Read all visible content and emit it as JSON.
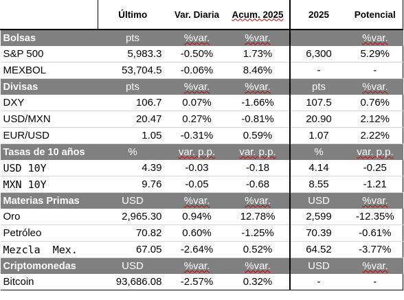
{
  "headers": {
    "blank": "",
    "ultimo": "Último",
    "var_diaria": "Var. Diaria",
    "acum": "Acum. 2025",
    "y2025": "2025",
    "potencial": "Potencial"
  },
  "sections": [
    {
      "title": "Bolsas",
      "units": [
        "pts",
        "%var.",
        "%var.",
        "",
        "%var."
      ],
      "rows": [
        {
          "name": "S&P 500",
          "last": "5,983.3",
          "daily": "-0.50%",
          "ytd": "1.73%",
          "target": "6,300",
          "potential": "5.29%"
        },
        {
          "name": "MEXBOL",
          "last": "53,704.5",
          "daily": "-0.06%",
          "ytd": "8.46%",
          "target": "-",
          "potential": "-"
        }
      ]
    },
    {
      "title": "Divisas",
      "units": [
        "pts",
        "%var.",
        "%var.",
        "pts",
        "%var."
      ],
      "rows": [
        {
          "name": "DXY",
          "last": "106.7",
          "daily": "0.07%",
          "ytd": "-1.66%",
          "target": "107.5",
          "potential": "0.76%"
        },
        {
          "name": "USD/MXN",
          "last": "20.47",
          "daily": "0.27%",
          "ytd": "-0.81%",
          "target": "20.90",
          "potential": "2.12%"
        },
        {
          "name": "EUR/USD",
          "last": "1.05",
          "daily": "-0.31%",
          "ytd": "0.59%",
          "target": "1.07",
          "potential": "2.22%"
        }
      ]
    },
    {
      "title": "Tasas de 10 años",
      "units": [
        "%",
        "var. p.p.",
        "var. p.p.",
        "%",
        "var. p.p."
      ],
      "rows": [
        {
          "name": "USD 10Y",
          "last": "4.39",
          "daily": "-0.03",
          "ytd": "-0.18",
          "target": "4.14",
          "potential": "-0.25"
        },
        {
          "name": "MXN 10Y",
          "last": "9.76",
          "daily": "-0.05",
          "ytd": "-0.68",
          "target": "8.55",
          "potential": "-1.21"
        }
      ]
    },
    {
      "title": "Materias Primas",
      "units": [
        "USD",
        "%var.",
        "%var.",
        "USD",
        "%var."
      ],
      "rows": [
        {
          "name": "Oro",
          "last": "2,965.30",
          "daily": "0.94%",
          "ytd": "12.78%",
          "target": "2,599",
          "potential": "-12.35%"
        },
        {
          "name": "Petróleo",
          "last": "70.82",
          "daily": "0.60%",
          "ytd": "-1.25%",
          "target": "70.39",
          "potential": "-0.61%"
        },
        {
          "name": "Mezcla  Mex.",
          "last": "67.05",
          "daily": "-2.64%",
          "ytd": "0.52%",
          "target": "64.52",
          "potential": "-3.77%"
        }
      ]
    },
    {
      "title": "Criptomonedas",
      "units": [
        "USD",
        "%var.",
        "%var.",
        "USD",
        "%var."
      ],
      "rows": [
        {
          "name": "Bitcoin",
          "last": "93,686.08",
          "daily": "-2.57%",
          "ytd": "0.32%",
          "target": "-",
          "potential": "-"
        }
      ]
    }
  ],
  "colors": {
    "negative": "#ff0000",
    "positive": "#00a550",
    "section_bg": "#808080"
  }
}
